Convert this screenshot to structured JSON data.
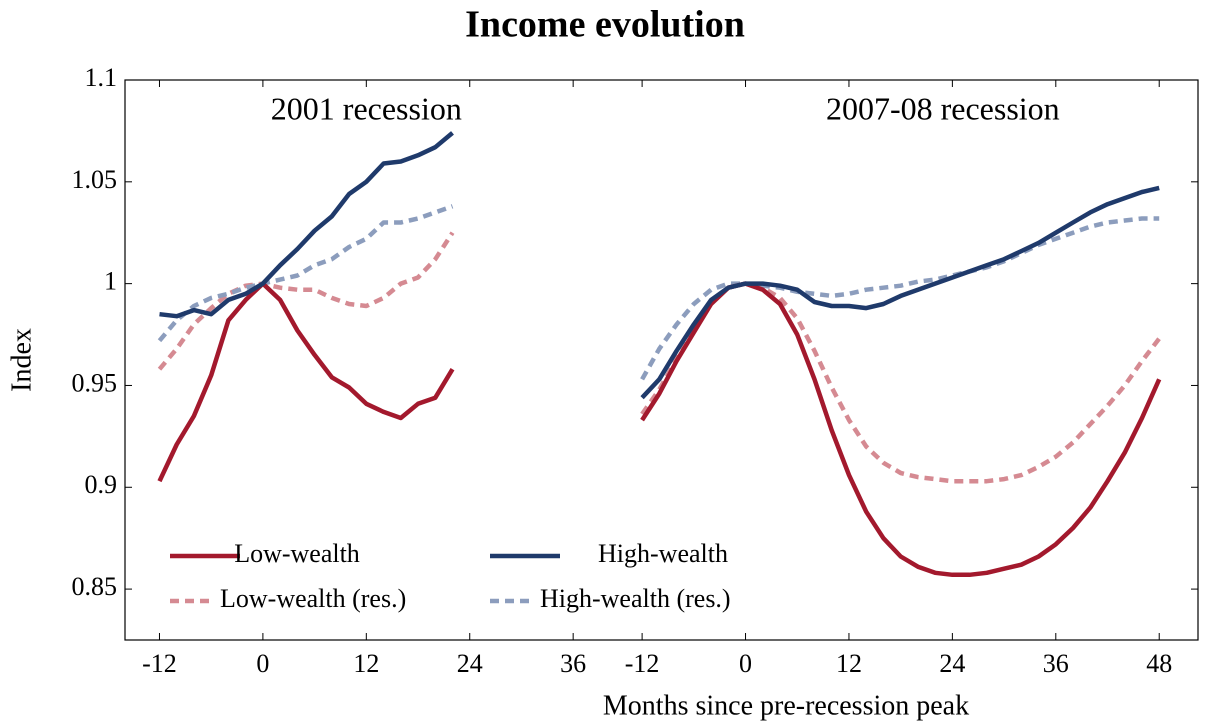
{
  "chart_data": {
    "type": "line",
    "title": "Income evolution",
    "xlabel": "Months since pre-recession peak",
    "ylabel": "Index",
    "ylim": [
      0.825,
      1.1
    ],
    "yticks": [
      0.85,
      0.9,
      0.95,
      1,
      1.05,
      1.1
    ],
    "panels": [
      {
        "title": "2001 recession",
        "xlim": [
          -16,
          40
        ],
        "xticks": [
          -12,
          0,
          12,
          24,
          36
        ],
        "x": [
          -12,
          -10,
          -8,
          -6,
          -4,
          -2,
          0,
          2,
          4,
          6,
          8,
          10,
          12,
          14,
          16,
          18,
          20,
          22
        ]
      },
      {
        "title": "2007-08 recession",
        "xlim": [
          -16,
          52.5
        ],
        "xticks": [
          -12,
          0,
          12,
          24,
          36,
          48
        ],
        "x": [
          -12,
          -10,
          -8,
          -6,
          -4,
          -2,
          0,
          2,
          4,
          6,
          8,
          10,
          12,
          14,
          16,
          18,
          20,
          22,
          24,
          26,
          28,
          30,
          32,
          34,
          36,
          38,
          40,
          42,
          44,
          46,
          48
        ]
      }
    ],
    "series": [
      {
        "name": "Low-wealth",
        "color": "#a3192d",
        "dashed": false,
        "values": [
          [
            0.903,
            0.921,
            0.935,
            0.955,
            0.982,
            0.992,
            1.0,
            0.992,
            0.977,
            0.965,
            0.954,
            0.949,
            0.941,
            0.937,
            0.934,
            0.941,
            0.944,
            0.958
          ],
          [
            0.933,
            0.946,
            0.962,
            0.976,
            0.99,
            0.998,
            1.0,
            0.997,
            0.99,
            0.975,
            0.953,
            0.928,
            0.906,
            0.888,
            0.875,
            0.866,
            0.861,
            0.858,
            0.857,
            0.857,
            0.858,
            0.86,
            0.862,
            0.866,
            0.872,
            0.88,
            0.89,
            0.903,
            0.917,
            0.934,
            0.953
          ]
        ]
      },
      {
        "name": "High-wealth",
        "color": "#1f3a6b",
        "dashed": false,
        "values": [
          [
            0.985,
            0.984,
            0.987,
            0.985,
            0.992,
            0.995,
            1.0,
            1.009,
            1.017,
            1.026,
            1.033,
            1.044,
            1.05,
            1.059,
            1.06,
            1.063,
            1.067,
            1.074
          ],
          [
            0.944,
            0.953,
            0.967,
            0.98,
            0.992,
            0.998,
            1.0,
            1.0,
            0.999,
            0.997,
            0.991,
            0.989,
            0.989,
            0.988,
            0.99,
            0.994,
            0.997,
            1.0,
            1.003,
            1.006,
            1.009,
            1.012,
            1.016,
            1.02,
            1.025,
            1.03,
            1.035,
            1.039,
            1.042,
            1.045,
            1.047
          ]
        ]
      },
      {
        "name": "Low-wealth (res.)",
        "color": "#d58a92",
        "dashed": true,
        "values": [
          [
            0.958,
            0.968,
            0.98,
            0.988,
            0.995,
            0.999,
            1.0,
            0.998,
            0.997,
            0.997,
            0.993,
            0.99,
            0.989,
            0.993,
            1.0,
            1.003,
            1.012,
            1.025
          ],
          [
            0.936,
            0.948,
            0.963,
            0.977,
            0.991,
            0.998,
            1.0,
            0.998,
            0.993,
            0.983,
            0.967,
            0.949,
            0.933,
            0.92,
            0.912,
            0.907,
            0.905,
            0.904,
            0.903,
            0.903,
            0.903,
            0.904,
            0.906,
            0.91,
            0.915,
            0.922,
            0.931,
            0.94,
            0.95,
            0.962,
            0.973
          ]
        ]
      },
      {
        "name": "High-wealth (res.)",
        "color": "#8c9dbd",
        "dashed": true,
        "values": [
          [
            0.972,
            0.982,
            0.989,
            0.993,
            0.995,
            0.998,
            1.0,
            1.002,
            1.004,
            1.009,
            1.012,
            1.018,
            1.022,
            1.03,
            1.03,
            1.032,
            1.035,
            1.038
          ],
          [
            0.953,
            0.968,
            0.98,
            0.99,
            0.997,
            1.0,
            1.0,
            0.999,
            0.998,
            0.996,
            0.995,
            0.994,
            0.995,
            0.997,
            0.998,
            0.999,
            1.001,
            1.002,
            1.004,
            1.006,
            1.008,
            1.011,
            1.015,
            1.019,
            1.022,
            1.025,
            1.028,
            1.03,
            1.031,
            1.032,
            1.032
          ]
        ]
      }
    ]
  }
}
